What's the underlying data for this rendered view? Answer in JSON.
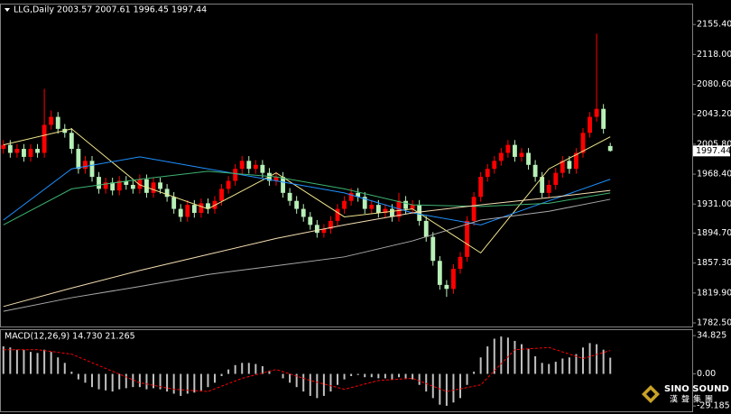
{
  "chart_data": [
    {
      "type": "candlestick",
      "title": "LLG,Daily  2003.57 2007.61 1996.45 1997.44",
      "open": [
        2000,
        2005,
        1995,
        2000,
        1990,
        2000,
        1995,
        2030,
        2040,
        2025,
        2020,
        2000,
        1975,
        1985,
        1965,
        1950,
        1958,
        1948,
        1960,
        1955,
        1950,
        1962,
        1945,
        1958,
        1950,
        1940,
        1925,
        1915,
        1930,
        1920,
        1932,
        1925,
        1935,
        1950,
        1960,
        1975,
        1985,
        1975,
        1980,
        1970,
        1960,
        1965,
        1945,
        1935,
        1925,
        1915,
        1905,
        1895,
        1900,
        1910,
        1925,
        1935,
        1945,
        1940,
        1925,
        1930,
        1920,
        1925,
        1915,
        1935,
        1925,
        1930,
        1910,
        1890,
        1860,
        1830,
        1825,
        1850,
        1865,
        1910,
        1940,
        1965,
        1975,
        1985,
        1995,
        2005,
        1990,
        1995,
        1980,
        1965,
        1945,
        1955,
        1970,
        1985,
        1975,
        1995,
        2020,
        2040,
        2050,
        2003.57
      ],
      "high": [
        2011,
        2011,
        2006,
        2006,
        2006,
        2006,
        2075,
        2048,
        2046,
        2031,
        2026,
        2006,
        1991,
        1991,
        1971,
        1964,
        1964,
        1966,
        1966,
        1961,
        1968,
        1968,
        1964,
        1964,
        1956,
        1946,
        1931,
        1936,
        1936,
        1938,
        1938,
        1941,
        1956,
        1966,
        1981,
        1991,
        1991,
        1986,
        1986,
        1976,
        1971,
        1971,
        1951,
        1941,
        1931,
        1921,
        1911,
        1906,
        1916,
        1931,
        1941,
        1951,
        1951,
        1946,
        1936,
        1936,
        1931,
        1931,
        1945,
        1941,
        1936,
        1936,
        1916,
        1896,
        1866,
        1836,
        1856,
        1871,
        1916,
        1946,
        1971,
        1981,
        1991,
        2001,
        2011,
        2011,
        2001,
        2001,
        1986,
        1971,
        1961,
        1976,
        1991,
        1991,
        2001,
        2026,
        2046,
        2144,
        2056,
        2007.61
      ],
      "low": [
        1994,
        1989,
        1989,
        1984,
        1984,
        1989,
        1989,
        2024,
        2019,
        2014,
        1994,
        1969,
        1969,
        1959,
        1944,
        1944,
        1942,
        1942,
        1949,
        1944,
        1944,
        1939,
        1939,
        1944,
        1934,
        1919,
        1909,
        1909,
        1914,
        1914,
        1919,
        1919,
        1929,
        1944,
        1954,
        1969,
        1969,
        1969,
        1964,
        1954,
        1954,
        1939,
        1929,
        1919,
        1909,
        1899,
        1889,
        1889,
        1894,
        1904,
        1919,
        1929,
        1934,
        1919,
        1919,
        1914,
        1914,
        1909,
        1909,
        1919,
        1919,
        1904,
        1884,
        1854,
        1824,
        1815,
        1819,
        1844,
        1859,
        1904,
        1934,
        1959,
        1969,
        1979,
        1989,
        1984,
        1984,
        1974,
        1959,
        1939,
        1939,
        1949,
        1964,
        1969,
        1969,
        1989,
        2014,
        2034,
        2019,
        1996.45
      ],
      "close": [
        2005,
        1995,
        2000,
        1990,
        2000,
        1995,
        2030,
        2040,
        2025,
        2020,
        2000,
        1975,
        1985,
        1965,
        1950,
        1958,
        1948,
        1960,
        1955,
        1950,
        1962,
        1945,
        1958,
        1950,
        1940,
        1925,
        1915,
        1930,
        1920,
        1932,
        1925,
        1935,
        1950,
        1960,
        1975,
        1985,
        1975,
        1980,
        1970,
        1960,
        1965,
        1945,
        1935,
        1925,
        1915,
        1905,
        1895,
        1900,
        1910,
        1925,
        1935,
        1945,
        1940,
        1925,
        1930,
        1920,
        1925,
        1915,
        1935,
        1925,
        1930,
        1910,
        1890,
        1860,
        1830,
        1825,
        1850,
        1865,
        1910,
        1940,
        1965,
        1975,
        1985,
        1995,
        2005,
        1990,
        1995,
        1980,
        1965,
        1945,
        1955,
        1970,
        1985,
        1975,
        1995,
        2020,
        2040,
        2050,
        2025,
        1997.44
      ],
      "up_color": "#ff0000",
      "down_color": "#b8f0b8",
      "ylim": [
        1778,
        2180.4
      ],
      "yticks": [
        {
          "value": 2155.4,
          "label": "2155.40"
        },
        {
          "value": 2118,
          "label": "2118.00"
        },
        {
          "value": 2080.6,
          "label": "2080.60"
        },
        {
          "value": 2043.2,
          "label": "2043.20"
        },
        {
          "value": 2005.8,
          "label": "2005.80"
        },
        {
          "value": 1968.4,
          "label": "1968.40"
        },
        {
          "value": 1931,
          "label": "1931.00"
        },
        {
          "value": 1894.7,
          "label": "1894.70"
        },
        {
          "value": 1857.3,
          "label": "1857.30"
        },
        {
          "value": 1819.9,
          "label": "1819.90"
        },
        {
          "value": 1782.5,
          "label": "1782.50"
        }
      ],
      "last_price": {
        "value": 1997.44,
        "label": "1997.44"
      },
      "moving_averages": {
        "x": [
          0,
          10,
          20,
          30,
          40,
          50,
          60,
          70,
          80,
          89
        ],
        "series": [
          {
            "color": "#f0e68c",
            "values": [
              2005,
              2025,
              1955,
              1925,
              1970,
              1915,
              1925,
              1870,
              1975,
              2015
            ]
          },
          {
            "color": "#1e90ff",
            "values": [
              1911,
              1975,
              1990,
              1975,
              1960,
              1945,
              1920,
              1905,
              1935,
              1962
            ]
          },
          {
            "color": "#3cb371",
            "values": [
              1905,
              1950,
              1962,
              1972,
              1965,
              1950,
              1930,
              1928,
              1932,
              1945
            ]
          },
          {
            "color": "#f5deb3",
            "values": [
              1803,
              1826,
              1848,
              1868,
              1888,
              1905,
              1920,
              1930,
              1939,
              1948
            ]
          },
          {
            "color": "#a9a9a9",
            "values": [
              1797,
              1814,
              1828,
              1843,
              1854,
              1865,
              1885,
              1911,
              1922,
              1937
            ]
          }
        ]
      }
    },
    {
      "type": "macd",
      "title": "MACD(12,26,9) 14.730 21.265",
      "values": [
        25,
        24,
        22,
        22,
        20,
        19,
        22,
        20,
        15,
        10,
        2,
        -5,
        -8,
        -12,
        -14,
        -15,
        -16,
        -14,
        -13,
        -12,
        -12,
        -14,
        -13,
        -14,
        -16,
        -18,
        -20,
        -18,
        -17,
        -15,
        -12,
        -8,
        -2,
        4,
        8,
        10,
        10,
        9,
        7,
        3,
        0,
        -4,
        -8,
        -12,
        -16,
        -20,
        -22,
        -20,
        -16,
        -10,
        -5,
        -2,
        -1,
        -3,
        -3,
        -4,
        -4,
        -5,
        -3,
        -4,
        -5,
        -10,
        -16,
        -22,
        -28,
        -29,
        -26,
        -22,
        -10,
        2,
        15,
        25,
        32,
        34,
        33,
        30,
        27,
        23,
        16,
        10,
        9,
        11,
        14,
        15,
        18,
        24,
        28,
        27,
        22,
        14.73
      ],
      "color": "#c0c0c0",
      "signal": {
        "x": [
          0,
          5,
          10,
          15,
          20,
          25,
          30,
          35,
          40,
          45,
          50,
          55,
          60,
          65,
          70,
          75,
          80,
          85,
          89
        ],
        "values": [
          22,
          22,
          18,
          5,
          -8,
          -14,
          -16,
          -4,
          4,
          -6,
          -14,
          -6,
          -4,
          -16,
          -10,
          22,
          24,
          14,
          21.265
        ],
        "color": "#ff0000"
      },
      "ylim": [
        -34,
        39.8
      ],
      "yticks": [
        34.825,
        {
          "value": 0,
          "label": "0.00"
        },
        -29.185
      ]
    }
  ],
  "logo": {
    "brand": "SINO SOUND",
    "tagline": "漢聲集團"
  }
}
